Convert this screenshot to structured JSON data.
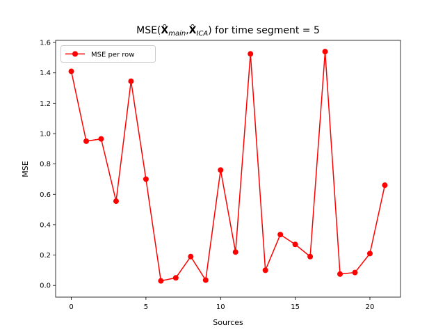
{
  "chart_data": {
    "type": "line",
    "title": {
      "prefix": "MSE(",
      "sep": ",",
      "suffix": ") for time segment = 5",
      "hat_char": "X",
      "sub_main": "main",
      "sub_ica": "ICA"
    },
    "xlabel": "Sources",
    "ylabel": "MSE",
    "xlim": [
      -1.05,
      22.05
    ],
    "ylim": [
      -0.077,
      1.614
    ],
    "xticks": [
      0,
      5,
      10,
      15,
      20
    ],
    "xtick_labels": [
      "0",
      "5",
      "10",
      "15",
      "20"
    ],
    "yticks": [
      0.0,
      0.2,
      0.4,
      0.6,
      0.8,
      1.0,
      1.2,
      1.4,
      1.6
    ],
    "ytick_labels": [
      "0.0",
      "0.2",
      "0.4",
      "0.6",
      "0.8",
      "1.0",
      "1.2",
      "1.4",
      "1.6"
    ],
    "grid": false,
    "legend_position": "upper-left",
    "series": [
      {
        "name": "MSE per row",
        "color": "#ff0000",
        "marker": "circle",
        "x": [
          0,
          1,
          2,
          3,
          4,
          5,
          6,
          7,
          8,
          9,
          10,
          11,
          12,
          13,
          14,
          15,
          16,
          17,
          18,
          19,
          20,
          21
        ],
        "y": [
          1.41,
          0.95,
          0.965,
          0.555,
          1.345,
          0.7,
          0.03,
          0.05,
          0.19,
          0.035,
          0.76,
          0.22,
          1.525,
          0.1,
          0.335,
          0.27,
          0.19,
          1.54,
          0.075,
          0.085,
          0.21,
          0.66
        ]
      }
    ]
  }
}
